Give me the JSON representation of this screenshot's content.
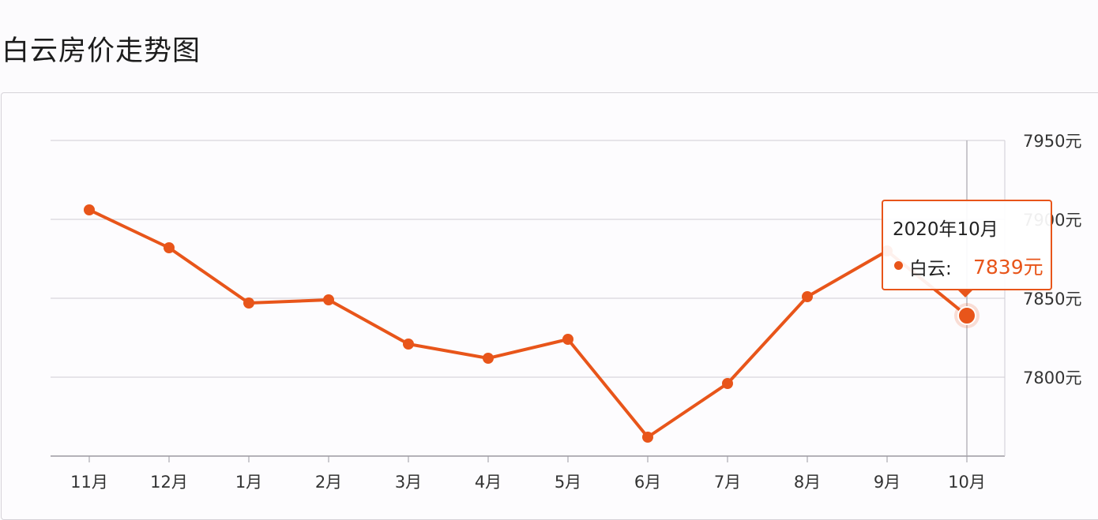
{
  "page": {
    "title": "白云房价走势图"
  },
  "colors": {
    "series": "#e8551a",
    "grid": "#cfcdd4",
    "axis": "#9c9aa1",
    "text": "#333333"
  },
  "chart_data": {
    "type": "line",
    "categories": [
      "11月",
      "12月",
      "1月",
      "2月",
      "3月",
      "4月",
      "5月",
      "6月",
      "7月",
      "8月",
      "9月",
      "10月"
    ],
    "series": [
      {
        "name": "白云",
        "values": [
          7906,
          7882,
          7847,
          7849,
          7821,
          7812,
          7824,
          7762,
          7796,
          7851,
          7880,
          7839
        ]
      }
    ],
    "y_ticks": [
      "7800元",
      "7850元",
      "7900元",
      "7950元"
    ],
    "y_tick_values": [
      7800,
      7850,
      7900,
      7950
    ],
    "ylim": [
      7750,
      7950
    ],
    "y_axis_position": "right",
    "grid": true,
    "highlighted_index": 11
  },
  "tooltip": {
    "date": "2020年10月",
    "series": "白云:",
    "value": "7839元"
  }
}
